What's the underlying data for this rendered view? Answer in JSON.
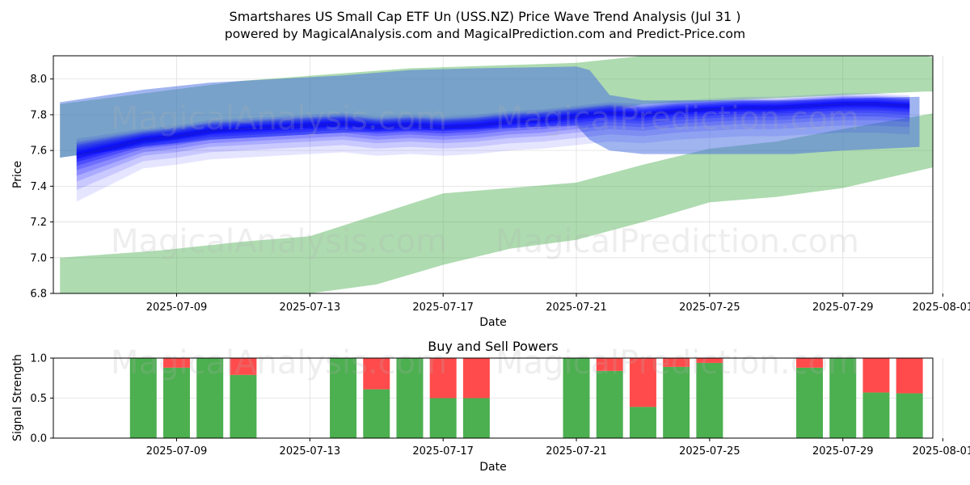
{
  "title_line1": "Smartshares US Small Cap ETF Un (USS.NZ) Price Wave Trend Analysis (Jul 31 )",
  "title_line2": "powered by MagicalAnalysis.com and MagicalPrediction.com and Predict-Price.com",
  "watermarks": [
    "MagicalAnalysis.com",
    "MagicalPrediction.com"
  ],
  "colors": {
    "green_band": "#4caf50",
    "blue_band": "#0000ff",
    "buy": "#4caf50",
    "sell": "#ff4b4b",
    "grid": "#e0e0e0"
  },
  "chart_data": [
    {
      "type": "area",
      "title": "",
      "xlabel": "Date",
      "ylabel": "Price",
      "ylim": [
        6.8,
        8.13
      ],
      "xlim_days": [
        -0.7,
        25.7
      ],
      "x_origin": "2025-07-06",
      "x_ticks": [
        {
          "day": 3,
          "label": "2025-07-09"
        },
        {
          "day": 7,
          "label": "2025-07-13"
        },
        {
          "day": 11,
          "label": "2025-07-17"
        },
        {
          "day": 15,
          "label": "2025-07-21"
        },
        {
          "day": 19,
          "label": "2025-07-25"
        },
        {
          "day": 23,
          "label": "2025-07-29"
        },
        {
          "day": 26,
          "label": "2025-08-01"
        }
      ],
      "y_ticks": [
        "6.8",
        "7.0",
        "7.2",
        "7.4",
        "7.6",
        "7.8",
        "8.0"
      ],
      "series": [
        {
          "name": "upper-green-band",
          "color": "#4caf50",
          "alpha": 0.45,
          "x": [
            -0.5,
            5,
            10,
            15,
            17,
            25.5,
            25.7
          ],
          "upper": [
            7.86,
            7.99,
            8.06,
            8.09,
            8.13,
            8.13,
            8.12
          ],
          "lower": [
            7.56,
            7.72,
            7.74,
            7.79,
            7.86,
            7.93,
            7.93
          ]
        },
        {
          "name": "lower-green-band",
          "color": "#4caf50",
          "alpha": 0.45,
          "x": [
            -0.5,
            1,
            2.5,
            5,
            7,
            9,
            11,
            13,
            15,
            17,
            19,
            21,
            23,
            25.8
          ],
          "upper": [
            7.0,
            7.02,
            7.04,
            7.09,
            7.12,
            7.24,
            7.36,
            7.39,
            7.42,
            7.52,
            7.61,
            7.65,
            7.72,
            7.81
          ],
          "lower": [
            6.8,
            6.8,
            6.8,
            6.8,
            6.8,
            6.85,
            6.96,
            7.05,
            7.1,
            7.2,
            7.31,
            7.34,
            7.39,
            7.51
          ]
        },
        {
          "name": "blue-steel-band",
          "color": "#4169e1",
          "alpha": 0.5,
          "x": [
            -0.5,
            2,
            4,
            6,
            8,
            10,
            12,
            15,
            15.4,
            16,
            17,
            19,
            21.5,
            23,
            25.3
          ],
          "upper": [
            7.87,
            7.94,
            7.98,
            8.0,
            8.02,
            8.05,
            8.06,
            8.07,
            8.05,
            7.91,
            7.88,
            7.88,
            7.88,
            7.89,
            7.9
          ],
          "lower": [
            7.56,
            7.62,
            7.66,
            7.68,
            7.7,
            7.71,
            7.72,
            7.74,
            7.66,
            7.6,
            7.58,
            7.58,
            7.58,
            7.6,
            7.62
          ]
        },
        {
          "name": "wave-ensemble",
          "color": "#0000ff",
          "x": [
            0,
            2,
            3,
            4,
            5,
            6,
            7,
            8,
            9,
            10,
            11,
            12,
            13,
            14,
            15,
            16,
            17,
            18,
            19,
            20,
            21,
            22,
            23,
            24,
            25
          ],
          "center": [
            7.57,
            7.66,
            7.68,
            7.71,
            7.72,
            7.73,
            7.74,
            7.75,
            7.73,
            7.74,
            7.73,
            7.74,
            7.76,
            7.77,
            7.79,
            7.81,
            7.8,
            7.82,
            7.83,
            7.84,
            7.84,
            7.85,
            7.86,
            7.86,
            7.85
          ]
        }
      ]
    },
    {
      "type": "bar",
      "title": "Buy and Sell Powers",
      "xlabel": "Date",
      "ylabel": "Signal Strength",
      "ylim": [
        0,
        1
      ],
      "y_ticks": [
        "0.0",
        "0.5",
        "1.0"
      ],
      "x_ticks": [
        {
          "day": 3,
          "label": "2025-07-09"
        },
        {
          "day": 7,
          "label": "2025-07-13"
        },
        {
          "day": 11,
          "label": "2025-07-17"
        },
        {
          "day": 15,
          "label": "2025-07-21"
        },
        {
          "day": 19,
          "label": "2025-07-25"
        },
        {
          "day": 23,
          "label": "2025-07-29"
        },
        {
          "day": 26,
          "label": "2025-08-01"
        }
      ],
      "bars": [
        {
          "day": 2,
          "buy": 1.0
        },
        {
          "day": 3,
          "buy": 0.88
        },
        {
          "day": 4,
          "buy": 1.0
        },
        {
          "day": 5,
          "buy": 0.79
        },
        {
          "day": 8,
          "buy": 1.0
        },
        {
          "day": 9,
          "buy": 0.61
        },
        {
          "day": 10,
          "buy": 1.0
        },
        {
          "day": 11,
          "buy": 0.5
        },
        {
          "day": 12,
          "buy": 0.5
        },
        {
          "day": 15,
          "buy": 1.0
        },
        {
          "day": 16,
          "buy": 0.84
        },
        {
          "day": 17,
          "buy": 0.39
        },
        {
          "day": 18,
          "buy": 0.89
        },
        {
          "day": 19,
          "buy": 0.94
        },
        {
          "day": 22,
          "buy": 0.88
        },
        {
          "day": 23,
          "buy": 1.0
        },
        {
          "day": 24,
          "buy": 0.57
        },
        {
          "day": 25,
          "buy": 0.56
        }
      ]
    }
  ]
}
